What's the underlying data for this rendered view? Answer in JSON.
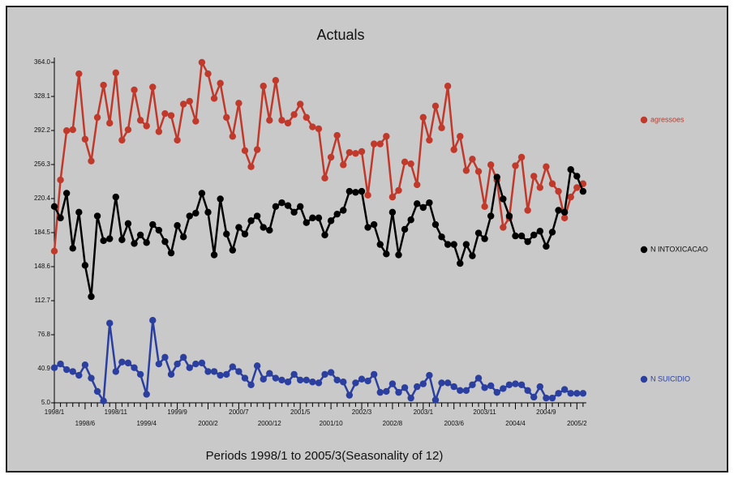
{
  "chart_data": {
    "type": "line",
    "title": "Actuals",
    "x_label": "Periods 1998/1 to 2005/3(Seasonality of 12)",
    "categories": [
      "1998/1",
      null,
      null,
      null,
      null,
      "1998/6",
      null,
      null,
      null,
      null,
      "1998/11",
      null,
      null,
      null,
      null,
      "1999/4",
      null,
      null,
      null,
      null,
      "1999/9",
      null,
      null,
      null,
      null,
      "2000/2",
      null,
      null,
      null,
      null,
      "2000/7",
      null,
      null,
      null,
      null,
      "2000/12",
      null,
      null,
      null,
      null,
      "2001/5",
      null,
      null,
      null,
      null,
      "2001/10",
      null,
      null,
      null,
      null,
      "2002/3",
      null,
      null,
      null,
      null,
      "2002/8",
      null,
      null,
      null,
      null,
      "2003/1",
      null,
      null,
      null,
      null,
      "2003/6",
      null,
      null,
      null,
      null,
      "2003/11",
      null,
      null,
      null,
      null,
      "2004/4",
      null,
      null,
      null,
      null,
      "2004/9",
      null,
      null,
      null,
      null,
      "2005/2",
      null
    ],
    "ylim": [
      5.0,
      364.0
    ],
    "yticks": [
      {
        "value": 5.0,
        "label": "5.0"
      },
      40.9,
      76.8,
      112.7,
      148.6,
      184.5,
      220.4,
      256.3,
      292.2,
      328.1,
      {
        "value": 364.0,
        "label": "364.0"
      }
    ],
    "grid": false,
    "legend": "right",
    "series": [
      {
        "name": "agressoes",
        "color": "#c0392b",
        "values": [
          165,
          240,
          292,
          293,
          352,
          283,
          260,
          306,
          340,
          300,
          353,
          282,
          293,
          335,
          303,
          297,
          338,
          291,
          310,
          308,
          282,
          320,
          323,
          302,
          364,
          352,
          326,
          342,
          306,
          286,
          321,
          271,
          254,
          272,
          339,
          303,
          345,
          303,
          300,
          309,
          320,
          306,
          296,
          294,
          242,
          264,
          287,
          256,
          269,
          268,
          270,
          224,
          278,
          278,
          286,
          222,
          229,
          259,
          257,
          235,
          306,
          282,
          318,
          295,
          339,
          272,
          286,
          250,
          262,
          249,
          212,
          256,
          240,
          190,
          200,
          255,
          264,
          208,
          244,
          232,
          254,
          236,
          228,
          200,
          222,
          232,
          236
        ]
      },
      {
        "name": "N INTOXICACAO",
        "color": "#000000",
        "values": [
          212,
          200,
          226,
          168,
          206,
          150,
          117,
          202,
          176,
          178,
          222,
          177,
          194,
          173,
          182,
          174,
          193,
          187,
          175,
          163,
          192,
          180,
          202,
          205,
          226,
          206,
          161,
          220,
          183,
          166,
          190,
          183,
          197,
          202,
          190,
          187,
          212,
          216,
          213,
          206,
          212,
          195,
          200,
          200,
          182,
          197,
          204,
          208,
          228,
          227,
          228,
          190,
          193,
          172,
          162,
          206,
          161,
          188,
          198,
          215,
          211,
          216,
          193,
          180,
          172,
          172,
          152,
          172,
          160,
          184,
          178,
          202,
          243,
          220,
          202,
          181,
          181,
          175,
          182,
          186,
          170,
          185,
          208,
          206,
          251,
          244,
          228
        ]
      },
      {
        "name": "N SUICIDIO",
        "color": "#2a3f9f",
        "values": [
          42,
          46,
          40,
          38,
          34,
          45,
          31,
          17,
          7,
          89,
          38,
          48,
          47,
          42,
          35,
          14,
          92,
          46,
          53,
          35,
          46,
          53,
          42,
          46,
          47,
          38,
          38,
          34,
          35,
          43,
          38,
          31,
          24,
          44,
          30,
          36,
          31,
          29,
          27,
          35,
          29,
          29,
          27,
          26,
          35,
          37,
          29,
          27,
          13,
          26,
          30,
          28,
          35,
          16,
          17,
          25,
          16,
          21,
          10,
          22,
          25,
          34,
          8,
          26,
          26,
          22,
          18,
          18,
          24,
          31,
          21,
          23,
          16,
          20,
          24,
          25,
          24,
          18,
          11,
          22,
          10,
          10,
          15,
          19,
          15,
          15,
          15
        ]
      }
    ]
  }
}
